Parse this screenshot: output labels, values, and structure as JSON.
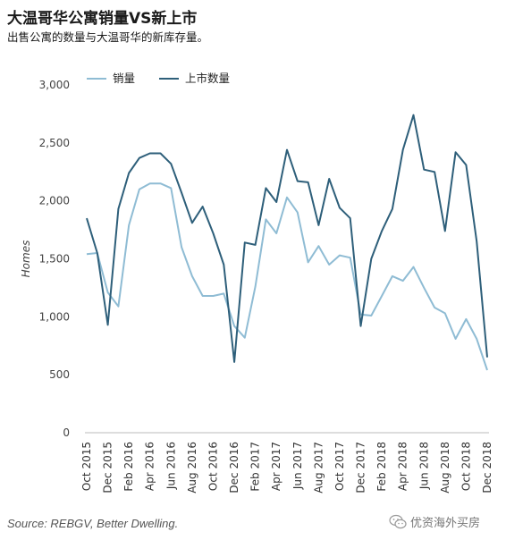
{
  "title": "大温哥华公寓销量VS新上市",
  "subtitle": "出售公寓的数量与大温哥华的新库存量。",
  "source": "Source: REBGV, Better Dwelling.",
  "watermark": "优资海外买房",
  "chart_data": {
    "type": "line",
    "ylabel": "Homes",
    "ylim": [
      0,
      3000
    ],
    "yticks": [
      0,
      500,
      1000,
      1500,
      2000,
      2500,
      3000
    ],
    "ytick_labels": [
      "0",
      "500",
      "1,000",
      "1,500",
      "2,000",
      "2,500",
      "3,000"
    ],
    "x": [
      "Oct 2015",
      "Nov 2015",
      "Dec 2015",
      "Jan 2016",
      "Feb 2016",
      "Mar 2016",
      "Apr 2016",
      "May 2016",
      "Jun 2016",
      "Jul 2016",
      "Aug 2016",
      "Sep 2016",
      "Oct 2016",
      "Nov 2016",
      "Dec 2016",
      "Jan 2017",
      "Feb 2017",
      "Mar 2017",
      "Apr 2017",
      "May 2017",
      "Jun 2017",
      "Jul 2017",
      "Aug 2017",
      "Sep 2017",
      "Oct 2017",
      "Nov 2017",
      "Dec 2017",
      "Jan 2018",
      "Feb 2018",
      "Mar 2018",
      "Apr 2018",
      "May 2018",
      "Jun 2018",
      "Jul 2018",
      "Aug 2018",
      "Sep 2018",
      "Oct 2018",
      "Nov 2018",
      "Dec 2018"
    ],
    "xtick_labels": [
      "Oct 2015",
      "Dec 2015",
      "Feb 2016",
      "Apr 2016",
      "Jun 2016",
      "Aug 2016",
      "Oct 2016",
      "Dec 2016",
      "Feb 2017",
      "Apr 2017",
      "Jun 2017",
      "Aug 2017",
      "Oct 2017",
      "Dec 2017",
      "Feb 2018",
      "Apr 2018",
      "Jun 2018",
      "Aug 2018",
      "Oct 2018",
      "Dec 2018"
    ],
    "legend_position": "top-left",
    "grid": false,
    "series": [
      {
        "name": "销量",
        "color": "#8fbcd4",
        "values": [
          1540,
          1550,
          1210,
          1090,
          1790,
          2100,
          2150,
          2150,
          2110,
          1600,
          1350,
          1180,
          1180,
          1200,
          920,
          820,
          1260,
          1840,
          1720,
          2030,
          1900,
          1470,
          1610,
          1450,
          1530,
          1510,
          1020,
          1010,
          1180,
          1350,
          1310,
          1430,
          1250,
          1080,
          1030,
          810,
          980,
          810,
          540
        ]
      },
      {
        "name": "上市数量",
        "color": "#2e5f7a",
        "values": [
          1850,
          1550,
          930,
          1930,
          2240,
          2370,
          2410,
          2410,
          2320,
          2070,
          1810,
          1950,
          1720,
          1450,
          610,
          1640,
          1620,
          2110,
          1990,
          2440,
          2170,
          2160,
          1790,
          2190,
          1940,
          1850,
          920,
          1500,
          1740,
          1930,
          2440,
          2740,
          2270,
          2250,
          1740,
          2420,
          2310,
          1650,
          650
        ]
      }
    ]
  }
}
